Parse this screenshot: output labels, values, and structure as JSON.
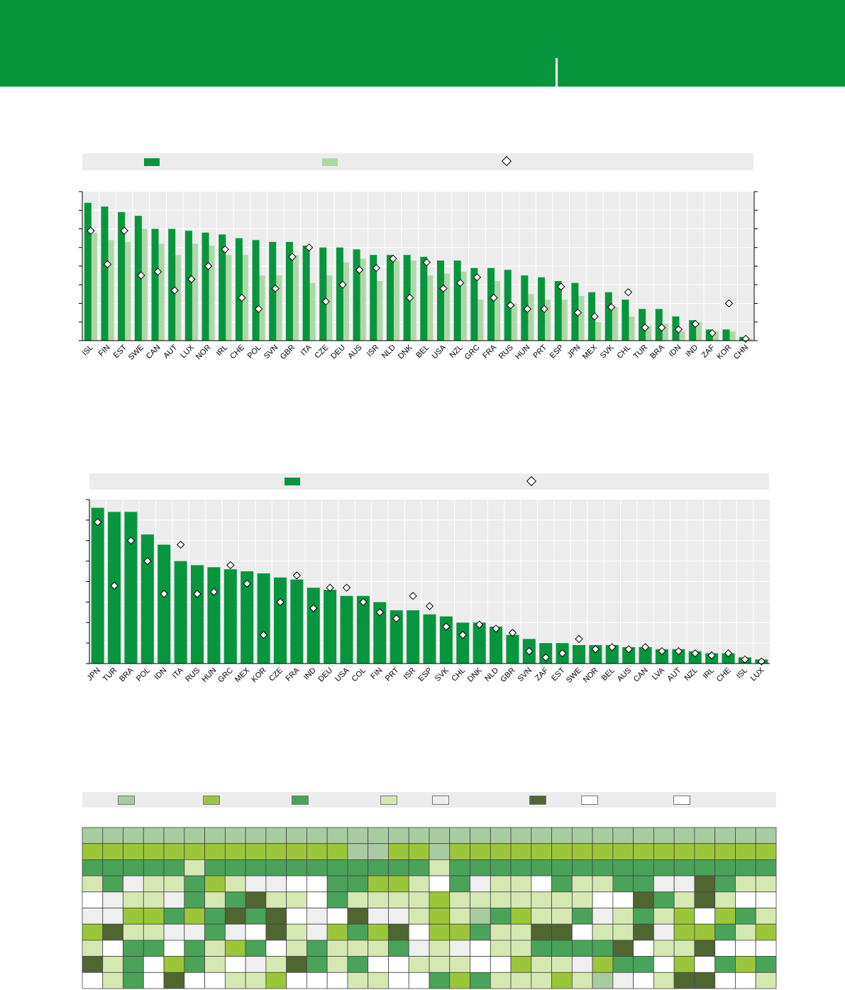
{
  "colors": {
    "header": "#07963e",
    "bar_dark": "#07963e",
    "bar_light": "#afd7a6",
    "plot_bg": "#ececec",
    "grid": "#ffffff",
    "heat": {
      "a": "#a9cba1",
      "b": "#9cc63a",
      "c": "#4aa358",
      "d": "#d6e8b2",
      "e": "#efefef",
      "f": "#4f6630",
      "g": "#ffffff",
      "h": "#ffffff"
    }
  },
  "chart_data": [
    {
      "type": "bar",
      "categories": [
        "ISL",
        "FIN",
        "EST",
        "SWE",
        "CAN",
        "AUT",
        "LUX",
        "NOR",
        "IRL",
        "CHE",
        "POL",
        "SVN",
        "GBR",
        "ITA",
        "CZE",
        "DEU",
        "AUS",
        "ISR",
        "NLD",
        "DNK",
        "BEL",
        "USA",
        "NZL",
        "GRC",
        "FRA",
        "RUS",
        "HUN",
        "PRT",
        "ESP",
        "JPN",
        "MEX",
        "SVK",
        "CHL",
        "TUR",
        "BRA",
        "IDN",
        "IND",
        "ZAF",
        "KOR",
        "CHN"
      ],
      "series": [
        {
          "style": "dark bars",
          "values": [
            74,
            72,
            69,
            67,
            60,
            60,
            59,
            58,
            57,
            55,
            54,
            53,
            53,
            51,
            50,
            50,
            49,
            46,
            46,
            46,
            45,
            43,
            43,
            39,
            39,
            38,
            35,
            34,
            32,
            31,
            26,
            26,
            22,
            17,
            17,
            13,
            11,
            6,
            6,
            2
          ]
        },
        {
          "style": "light bars",
          "values": [
            58,
            54,
            53,
            60,
            52,
            46,
            52,
            51,
            46,
            46,
            35,
            35,
            46,
            31,
            35,
            42,
            44,
            32,
            43,
            43,
            35,
            36,
            37,
            22,
            32,
            20,
            25,
            22,
            22,
            24,
            10,
            18,
            13,
            8,
            9,
            5,
            10,
            5,
            5,
            1
          ]
        },
        {
          "style": "diamond markers",
          "values": [
            59,
            41,
            59,
            35,
            37,
            27,
            33,
            40,
            49,
            23,
            17,
            28,
            45,
            50,
            21,
            30,
            38,
            39,
            44,
            23,
            42,
            28,
            31,
            34,
            23,
            19,
            17,
            17,
            29,
            15,
            13,
            18,
            26,
            7,
            7,
            6,
            9,
            4,
            20,
            1
          ]
        }
      ],
      "ylim": [
        0,
        80
      ]
    },
    {
      "type": "bar",
      "categories": [
        "JPN",
        "TUR",
        "BRA",
        "POL",
        "IDN",
        "ITA",
        "RUS",
        "HUN",
        "GRC",
        "MEX",
        "KOR",
        "CZE",
        "FRA",
        "IND",
        "DEU",
        "USA",
        "COL",
        "FIN",
        "PRT",
        "ISR",
        "ESP",
        "SVK",
        "CHL",
        "DNK",
        "NLD",
        "GBR",
        "SVN",
        "ZAF",
        "EST",
        "SWE",
        "NOR",
        "BEL",
        "AUS",
        "CAN",
        "LVA",
        "AUT",
        "NZL",
        "IRL",
        "CHE",
        "ISL",
        "LUX"
      ],
      "series": [
        {
          "style": "dark bars",
          "values": [
            76,
            74,
            74,
            63,
            58,
            50,
            48,
            47,
            46,
            45,
            44,
            42,
            41,
            37,
            36,
            33,
            33,
            30,
            26,
            26,
            24,
            23,
            20,
            20,
            18,
            14,
            12,
            10,
            10,
            9,
            9,
            9,
            8,
            8,
            7,
            7,
            6,
            5,
            5,
            3,
            2
          ]
        },
        {
          "style": "diamond markers",
          "values": [
            69,
            38,
            60,
            50,
            34,
            58,
            34,
            35,
            48,
            39,
            14,
            30,
            43,
            27,
            37,
            37,
            30,
            25,
            22,
            33,
            28,
            18,
            14,
            19,
            17,
            15,
            6,
            3,
            5,
            12,
            7,
            8,
            7,
            8,
            6,
            6,
            5,
            4,
            5,
            2,
            1
          ]
        }
      ],
      "ylim": [
        0,
        80
      ]
    },
    {
      "type": "heatmap",
      "columns": 34,
      "rows": [
        "aaaaaaaaaaaaaaaaaaaaaaaaaaaaaaaaaa",
        "bbbbbbbbbbbbbaabbabbbbbbbbbbbbbbbb",
        "cccccdcccccccccccdcccccccccccccccc",
        "dceddcbdeeggccbbdgceddgcddcceefcdd",
        "geddecdcfddgcddddbdddddddggfcdfdgg",
        "eebbcbcfcfgegfeedbdacbddcedcdbgbcd",
        "bfddeecegfdebcbfgbbcddffgddfebbcdb",
        "dgccgcdbcgdcdddcedegddccccfgddfggg",
        "fdcgbcdgedfcdcggdddggbddebccgbgcbc",
        "gdcgfggddbgggddggcbcdddbdaegdffggd"
      ]
    }
  ]
}
